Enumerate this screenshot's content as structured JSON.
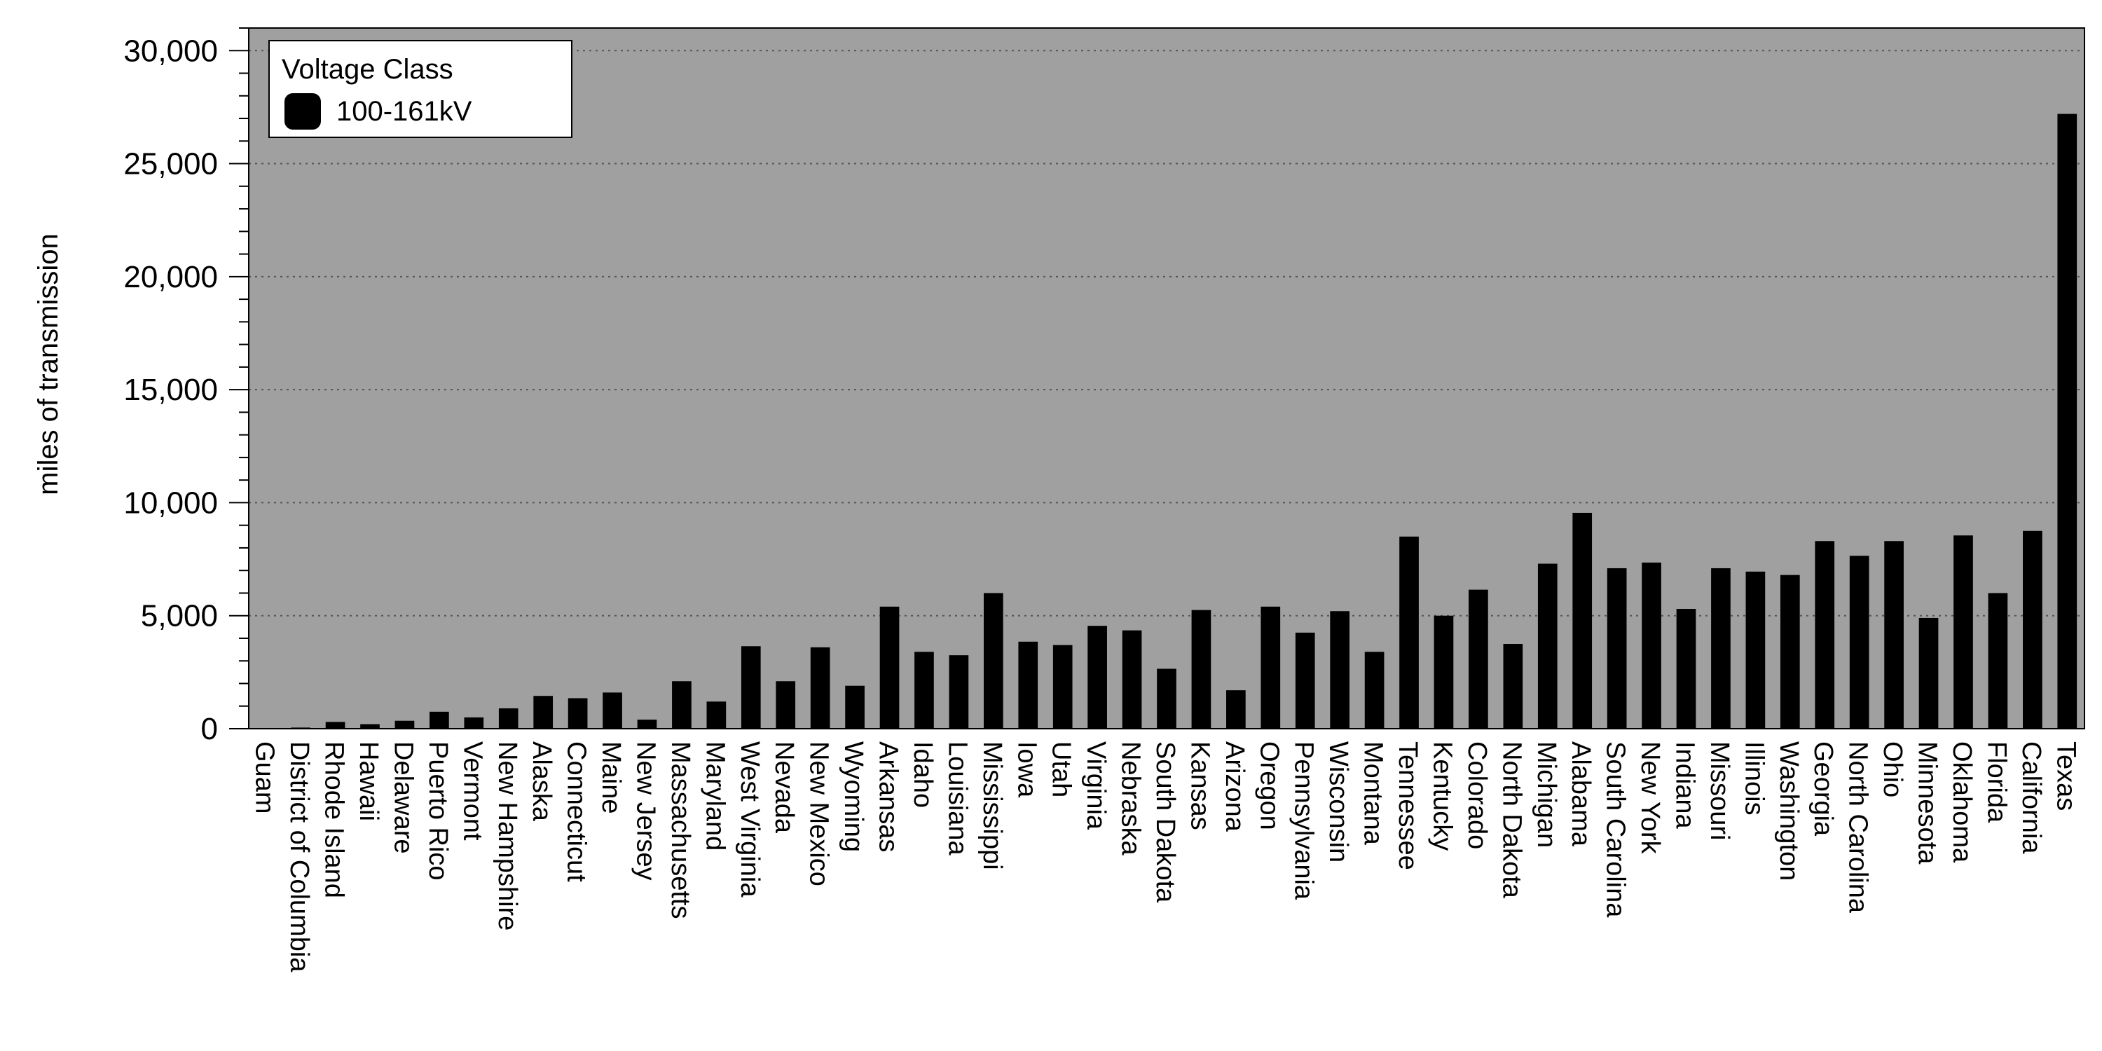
{
  "chart_data": {
    "type": "bar",
    "title": "",
    "xlabel": "",
    "ylabel": "miles of transmission",
    "ylim": [
      0,
      31000
    ],
    "yticks": [
      0,
      5000,
      10000,
      15000,
      20000,
      25000,
      30000
    ],
    "ytick_labels": [
      "0",
      "5,000",
      "10,000",
      "15,000",
      "20,000",
      "25,000",
      "30,000"
    ],
    "grid": "horizontal dotted",
    "legend": {
      "title": "Voltage Class",
      "position": "top-left"
    },
    "categories": [
      "Guam",
      "District of Columbia",
      "Rhode Island",
      "Hawaii",
      "Delaware",
      "Puerto Rico",
      "Vermont",
      "New Hampshire",
      "Alaska",
      "Connecticut",
      "Maine",
      "New Jersey",
      "Massachusetts",
      "Maryland",
      "West Virginia",
      "Nevada",
      "New Mexico",
      "Wyoming",
      "Arkansas",
      "Idaho",
      "Louisiana",
      "Mississippi",
      "Iowa",
      "Utah",
      "Virginia",
      "Nebraska",
      "South Dakota",
      "Kansas",
      "Arizona",
      "Oregon",
      "Pennsylvania",
      "Wisconsin",
      "Montana",
      "Tennessee",
      "Kentucky",
      "Colorado",
      "North Dakota",
      "Michigan",
      "Alabama",
      "South Carolina",
      "New York",
      "Indiana",
      "Missouri",
      "Illinois",
      "Washington",
      "Georgia",
      "North Carolina",
      "Ohio",
      "Minnesota",
      "Oklahoma",
      "Florida",
      "California",
      "Texas"
    ],
    "series": [
      {
        "name": "100-161kV",
        "color": "#000000",
        "values": [
          20,
          50,
          300,
          200,
          350,
          750,
          500,
          900,
          1450,
          1350,
          1600,
          400,
          2100,
          1200,
          3650,
          2100,
          3600,
          1900,
          5400,
          3400,
          3250,
          6000,
          3850,
          3700,
          4550,
          4350,
          2650,
          5250,
          1700,
          5400,
          4250,
          5200,
          3400,
          8500,
          5000,
          6150,
          3750,
          7300,
          9550,
          7100,
          7350,
          5300,
          7100,
          6950,
          6800,
          8300,
          7650,
          8300,
          4900,
          8550,
          6000,
          8750,
          27200
        ]
      }
    ],
    "colors": {
      "plot_background": "#a0a0a0",
      "bar": "#000000",
      "gridline": "#555555"
    }
  }
}
